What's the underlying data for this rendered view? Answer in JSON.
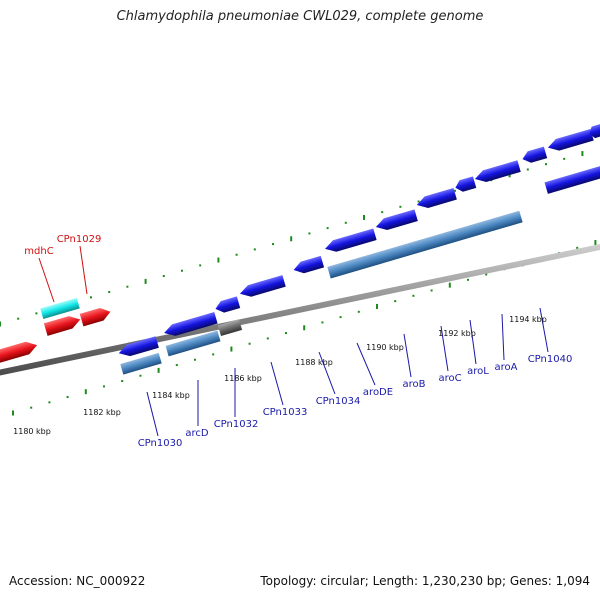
{
  "title": "Chlamydophila pneumoniae CWL029, complete genome",
  "footer": {
    "accession": "Accession: NC_000922",
    "topology": "Topology: circular; Length: 1,230,230 bp; Genes: 1,094"
  },
  "colors": {
    "forward_gene": "#e8141c",
    "forward_label": "#d01010",
    "highlight_gene": "#12e8e8",
    "reverse_gene": "#1414e0",
    "reverse_label": "#1a1aa8",
    "operon": "#4a86c0",
    "grey_gene": "#6a6a6a",
    "tick": "#1e8a1e",
    "backbone": "#8a8a8a"
  },
  "scale_labels": [
    "1180 kbp",
    "1182 kbp",
    "1184 kbp",
    "1186 kbp",
    "1188 kbp",
    "1190 kbp",
    "1192 kbp",
    "1194 kbp"
  ],
  "forward_labels": [
    "mdhC",
    "CPn1029"
  ],
  "reverse_labels": [
    "CPn1030",
    "arcD",
    "CPn1032",
    "CPn1033",
    "CPn1034",
    "aroDE",
    "aroB",
    "aroC",
    "aroL",
    "aroA",
    "CPn1040"
  ]
}
